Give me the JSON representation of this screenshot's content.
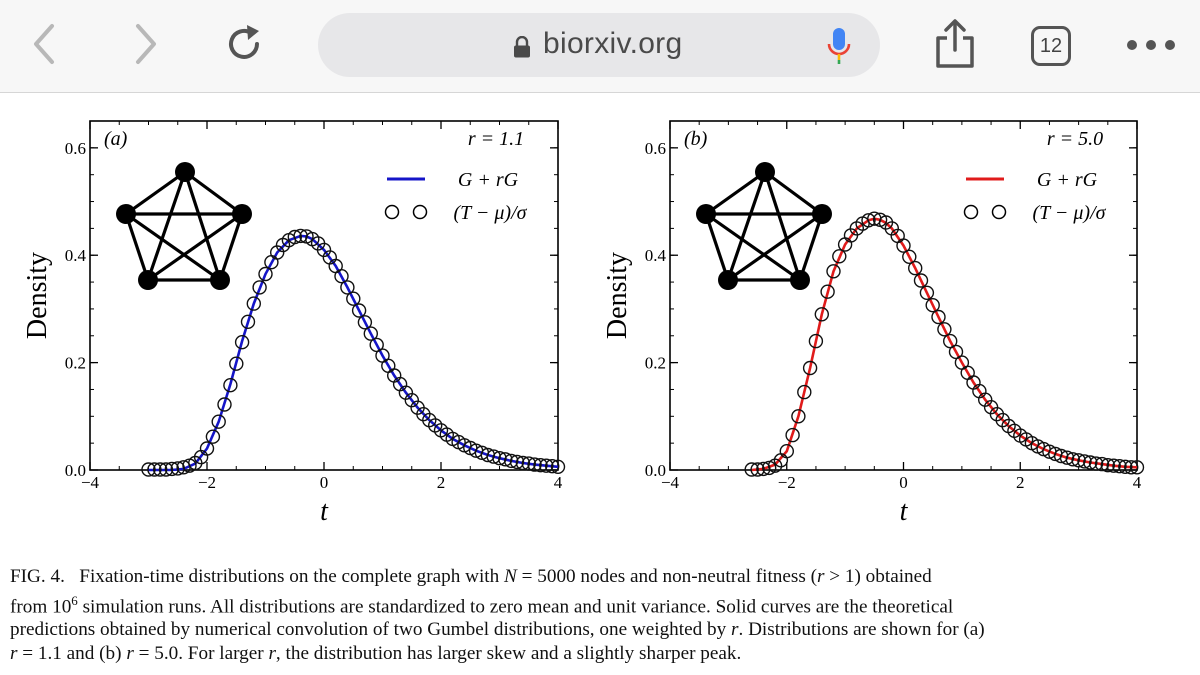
{
  "browser": {
    "url": "biorxiv.org",
    "tab_count": "12",
    "icons": {
      "back": "chevron-left-icon",
      "forward": "chevron-right-icon",
      "reload": "reload-icon",
      "lock": "lock-icon",
      "mic": "microphone-icon",
      "share": "share-icon",
      "more": "more-dots-icon"
    },
    "colors": {
      "toolbar": "#f7f7f7",
      "url_bar": "#e7e7e9"
    }
  },
  "figure": {
    "xticks": [
      -4,
      -2,
      0,
      2,
      4
    ],
    "yticks": [
      0.0,
      0.2,
      0.4,
      0.6
    ],
    "ylabel": "Density",
    "xlabel": "t"
  },
  "chart_data": [
    {
      "type": "line",
      "panel_label": "(a)",
      "title_annotation": "r = 1.1",
      "xlabel": "t",
      "ylabel": "Density",
      "xlim": [
        -4,
        4
      ],
      "ylim": [
        0,
        0.65
      ],
      "legend": [
        "G + rG",
        "(T − μ)/σ"
      ],
      "legend_position": "top-right",
      "line_color": "#1515c8",
      "series": [
        {
          "name": "G + rG",
          "x": [
            -3.0,
            -2.8,
            -2.6,
            -2.4,
            -2.2,
            -2.0,
            -1.8,
            -1.6,
            -1.4,
            -1.2,
            -1.0,
            -0.8,
            -0.6,
            -0.4,
            -0.3,
            -0.2,
            0.0,
            0.2,
            0.4,
            0.6,
            0.8,
            1.0,
            1.2,
            1.4,
            1.6,
            1.8,
            2.0,
            2.2,
            2.4,
            2.6,
            2.8,
            3.0,
            3.2,
            3.4,
            3.6,
            3.8,
            4.0
          ],
          "y": [
            0.0,
            0.0,
            0.0,
            0.002,
            0.012,
            0.04,
            0.09,
            0.16,
            0.24,
            0.31,
            0.365,
            0.405,
            0.428,
            0.436,
            0.435,
            0.43,
            0.41,
            0.38,
            0.34,
            0.297,
            0.254,
            0.213,
            0.176,
            0.144,
            0.116,
            0.093,
            0.074,
            0.058,
            0.046,
            0.036,
            0.028,
            0.022,
            0.017,
            0.013,
            0.01,
            0.008,
            0.006
          ]
        },
        {
          "name": "(T − μ)/σ",
          "x": [
            -3.0,
            -2.9,
            -2.8,
            -2.7,
            -2.6,
            -2.5,
            -2.4,
            -2.3,
            -2.2,
            -2.1,
            -2.0,
            -1.9,
            -1.8,
            -1.7,
            -1.6,
            -1.5,
            -1.4,
            -1.3,
            -1.2,
            -1.1,
            -1.0,
            -0.9,
            -0.8,
            -0.7,
            -0.6,
            -0.5,
            -0.4,
            -0.3,
            -0.2,
            -0.1,
            0.0,
            0.1,
            0.2,
            0.3,
            0.4,
            0.5,
            0.6,
            0.7,
            0.8,
            0.9,
            1.0,
            1.1,
            1.2,
            1.3,
            1.4,
            1.5,
            1.6,
            1.7,
            1.8,
            1.9,
            2.0,
            2.1,
            2.2,
            2.3,
            2.4,
            2.5,
            2.6,
            2.7,
            2.8,
            2.9,
            3.0,
            3.1,
            3.2,
            3.3,
            3.4,
            3.5,
            3.6,
            3.7,
            3.8,
            3.9,
            4.0
          ],
          "y": [
            0.001,
            0.001,
            0.001,
            0.001,
            0.002,
            0.003,
            0.005,
            0.008,
            0.013,
            0.024,
            0.04,
            0.062,
            0.09,
            0.122,
            0.158,
            0.198,
            0.238,
            0.276,
            0.31,
            0.34,
            0.365,
            0.387,
            0.405,
            0.419,
            0.428,
            0.434,
            0.436,
            0.435,
            0.43,
            0.422,
            0.41,
            0.396,
            0.38,
            0.361,
            0.34,
            0.319,
            0.297,
            0.275,
            0.254,
            0.233,
            0.213,
            0.194,
            0.176,
            0.16,
            0.144,
            0.13,
            0.116,
            0.104,
            0.093,
            0.083,
            0.074,
            0.066,
            0.058,
            0.052,
            0.046,
            0.041,
            0.036,
            0.032,
            0.028,
            0.025,
            0.022,
            0.02,
            0.017,
            0.015,
            0.013,
            0.012,
            0.01,
            0.009,
            0.008,
            0.007,
            0.006
          ]
        }
      ]
    },
    {
      "type": "line",
      "panel_label": "(b)",
      "title_annotation": "r = 5.0",
      "xlabel": "t",
      "ylabel": "Density",
      "xlim": [
        -4,
        4
      ],
      "ylim": [
        0,
        0.65
      ],
      "legend": [
        "G + rG",
        "(T − μ)/σ"
      ],
      "legend_position": "top-right",
      "line_color": "#e01b1b",
      "series": [
        {
          "name": "G + rG",
          "x": [
            -2.6,
            -2.4,
            -2.2,
            -2.0,
            -1.8,
            -1.6,
            -1.4,
            -1.2,
            -1.0,
            -0.8,
            -0.6,
            -0.5,
            -0.4,
            -0.3,
            -0.2,
            0.0,
            0.2,
            0.4,
            0.6,
            0.8,
            1.0,
            1.2,
            1.4,
            1.6,
            1.8,
            2.0,
            2.2,
            2.4,
            2.6,
            2.8,
            3.0,
            3.2,
            3.4,
            3.6,
            3.8,
            4.0
          ],
          "y": [
            0.0,
            0.002,
            0.01,
            0.035,
            0.1,
            0.19,
            0.29,
            0.37,
            0.42,
            0.45,
            0.465,
            0.468,
            0.466,
            0.46,
            0.45,
            0.418,
            0.376,
            0.33,
            0.285,
            0.24,
            0.2,
            0.163,
            0.131,
            0.104,
            0.082,
            0.064,
            0.05,
            0.039,
            0.03,
            0.023,
            0.018,
            0.014,
            0.011,
            0.008,
            0.006,
            0.005
          ]
        },
        {
          "name": "(T − μ)/σ",
          "x": [
            -2.6,
            -2.5,
            -2.4,
            -2.3,
            -2.2,
            -2.1,
            -2.0,
            -1.9,
            -1.8,
            -1.7,
            -1.6,
            -1.5,
            -1.4,
            -1.3,
            -1.2,
            -1.1,
            -1.0,
            -0.9,
            -0.8,
            -0.7,
            -0.6,
            -0.5,
            -0.4,
            -0.3,
            -0.2,
            -0.1,
            0.0,
            0.1,
            0.2,
            0.3,
            0.4,
            0.5,
            0.6,
            0.7,
            0.8,
            0.9,
            1.0,
            1.1,
            1.2,
            1.3,
            1.4,
            1.5,
            1.6,
            1.7,
            1.8,
            1.9,
            2.0,
            2.1,
            2.2,
            2.3,
            2.4,
            2.5,
            2.6,
            2.7,
            2.8,
            2.9,
            3.0,
            3.1,
            3.2,
            3.3,
            3.4,
            3.5,
            3.6,
            3.7,
            3.8,
            3.9,
            4.0
          ],
          "y": [
            0.001,
            0.001,
            0.002,
            0.004,
            0.008,
            0.018,
            0.035,
            0.065,
            0.1,
            0.145,
            0.19,
            0.24,
            0.29,
            0.332,
            0.37,
            0.398,
            0.42,
            0.437,
            0.45,
            0.459,
            0.465,
            0.468,
            0.466,
            0.461,
            0.45,
            0.436,
            0.418,
            0.397,
            0.376,
            0.353,
            0.33,
            0.307,
            0.285,
            0.262,
            0.24,
            0.22,
            0.2,
            0.181,
            0.163,
            0.147,
            0.131,
            0.117,
            0.104,
            0.093,
            0.082,
            0.073,
            0.064,
            0.057,
            0.05,
            0.044,
            0.039,
            0.034,
            0.03,
            0.026,
            0.023,
            0.02,
            0.018,
            0.016,
            0.014,
            0.012,
            0.011,
            0.009,
            0.008,
            0.007,
            0.006,
            0.005,
            0.005
          ]
        }
      ]
    }
  ],
  "caption": {
    "label": "FIG. 4.",
    "line1_a": "Fixation-time distributions on the complete graph with ",
    "line1_N": "N",
    "line1_b": " = 5000 nodes and non-neutral fitness (",
    "line1_r": "r",
    "line1_c": " > 1) obtained",
    "line2_a": "from 10",
    "line2_sup": "6",
    "line2_b": " simulation runs. All distributions are standardized to zero mean and unit variance. Solid curves are the theoretical",
    "line3_a": "predictions obtained by numerical convolution of two Gumbel distributions, one weighted by ",
    "line3_r": "r",
    "line3_b": ". Distributions are shown for (a)",
    "line4_r1": "r",
    "line4_a": " = 1.1 and (b) ",
    "line4_r2": "r",
    "line4_b": " = 5.0. For larger ",
    "line4_r3": "r",
    "line4_c": ", the distribution has larger skew and a slightly sharper peak."
  }
}
